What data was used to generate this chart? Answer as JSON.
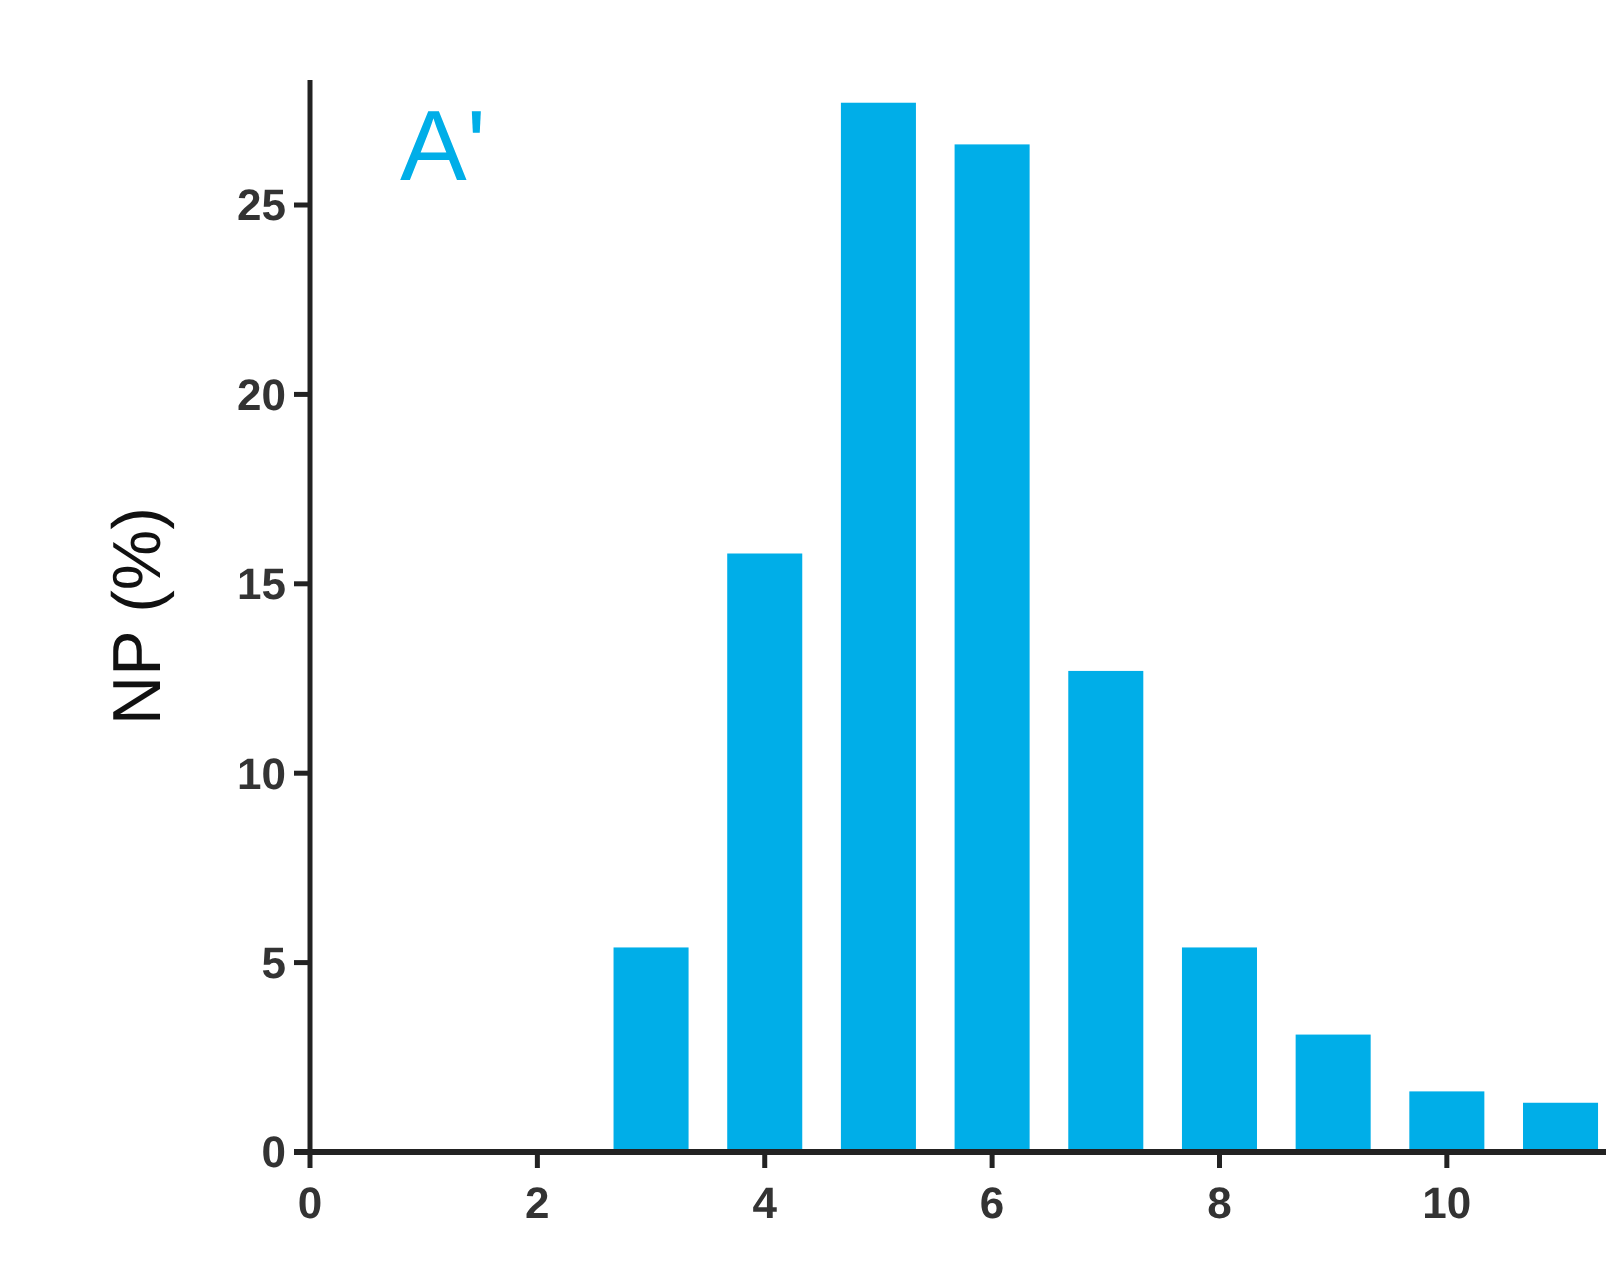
{
  "chart_data": {
    "type": "bar",
    "x": [
      3,
      4,
      5,
      6,
      7,
      8,
      9,
      10,
      11
    ],
    "values": [
      5.4,
      15.8,
      27.7,
      26.6,
      12.7,
      5.4,
      3.1,
      1.6,
      1.3
    ],
    "color": "#00aee8",
    "ylabel": "NP (%)",
    "annotations": [
      "A'"
    ],
    "xlim": [
      0,
      11.4
    ],
    "xticks": [
      0,
      2,
      4,
      6,
      8,
      10
    ],
    "ylim": [
      0,
      28.3
    ],
    "yticks": [
      0,
      5,
      10,
      15,
      20,
      25
    ],
    "grid": false
  }
}
